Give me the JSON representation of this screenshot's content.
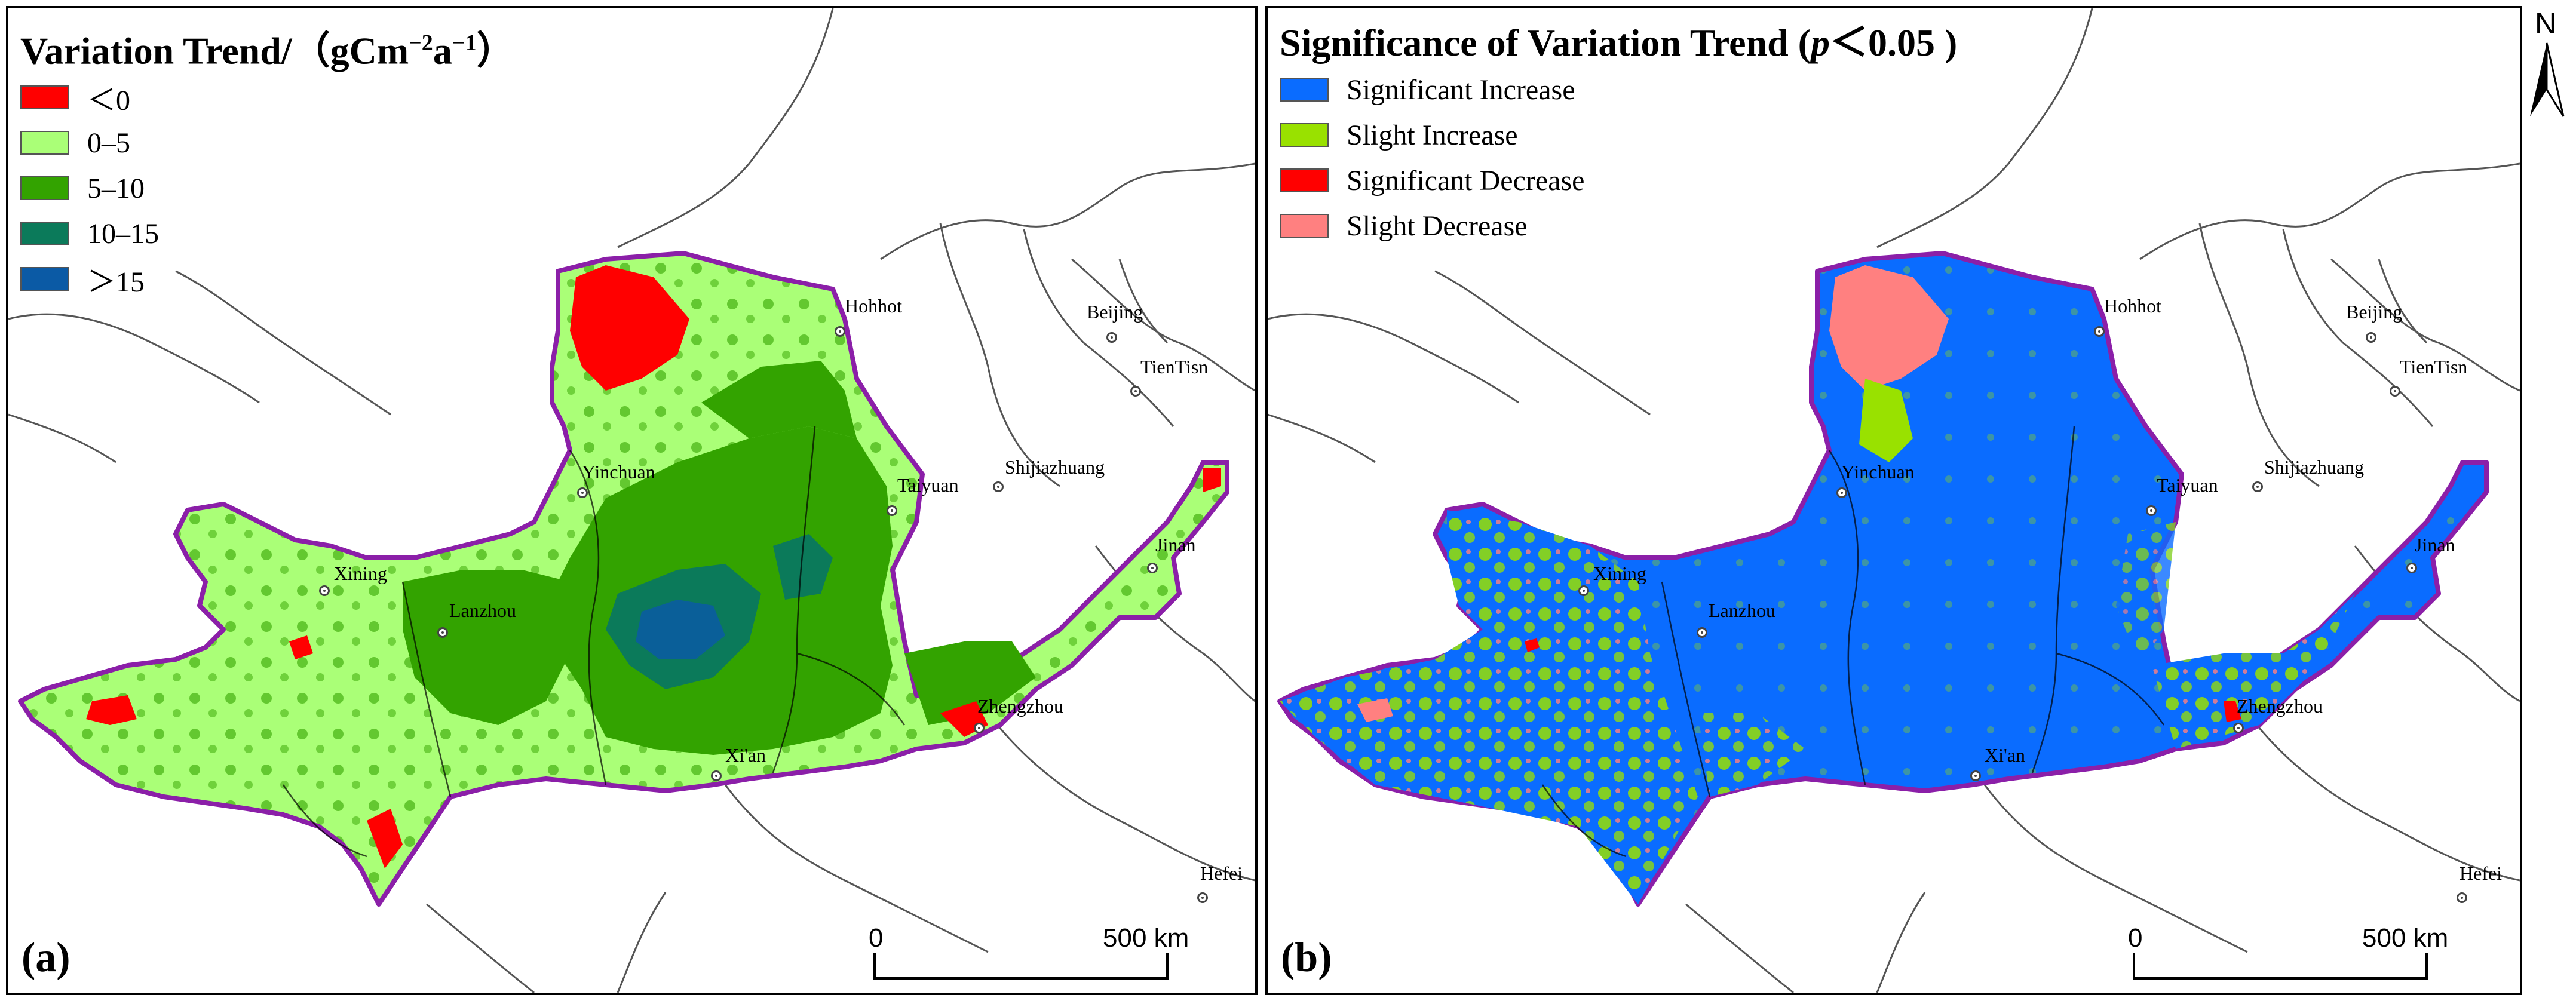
{
  "panels": [
    {
      "id": "a",
      "letter": "(a)",
      "legend_title": "Variation Trend/（gCm",
      "legend_title_sup1": "−2",
      "legend_title_mid": "a",
      "legend_title_sup2": "−1",
      "legend_title_end": "）",
      "legend": [
        {
          "label": "＜0",
          "color": "#ff0000"
        },
        {
          "label": "0–5",
          "color": "#aaff77"
        },
        {
          "label": "5–10",
          "color": "#33a300"
        },
        {
          "label": "10–15",
          "color": "#0b7a5a"
        },
        {
          "label": "＞15",
          "color": "#0b5aa5"
        }
      ],
      "scale": {
        "start": "0",
        "end": "500 km"
      }
    },
    {
      "id": "b",
      "letter": "(b)",
      "legend_title": "Significance of Variation Trend (",
      "legend_title_italic": "p",
      "legend_title_end": "＜0.05 )",
      "legend": [
        {
          "label": "Significant Increase",
          "color": "#0a6cff"
        },
        {
          "label": "Slight Increase",
          "color": "#99e100"
        },
        {
          "label": "Significant Decrease",
          "color": "#ff0000"
        },
        {
          "label": "Slight Decrease",
          "color": "#ff8080"
        }
      ],
      "scale": {
        "start": "0",
        "end": "500 km"
      }
    }
  ],
  "cities": {
    "hohhot": "Hohhot",
    "beijing": "Beijing",
    "tientisn": "TienTisn",
    "yinchuan": "Yinchuan",
    "taiyuan": "Taiyuan",
    "shijiazhuang": "Shijiazhuang",
    "jinan": "Jinan",
    "xining": "Xining",
    "lanzhou": "Lanzhou",
    "zhengzhou": "Zhengzhou",
    "xian": "Xi'an",
    "hefei": "Hefei"
  },
  "north_label": "N",
  "colors": {
    "basin_border": "#8b1fa8",
    "province_line": "#555555"
  }
}
